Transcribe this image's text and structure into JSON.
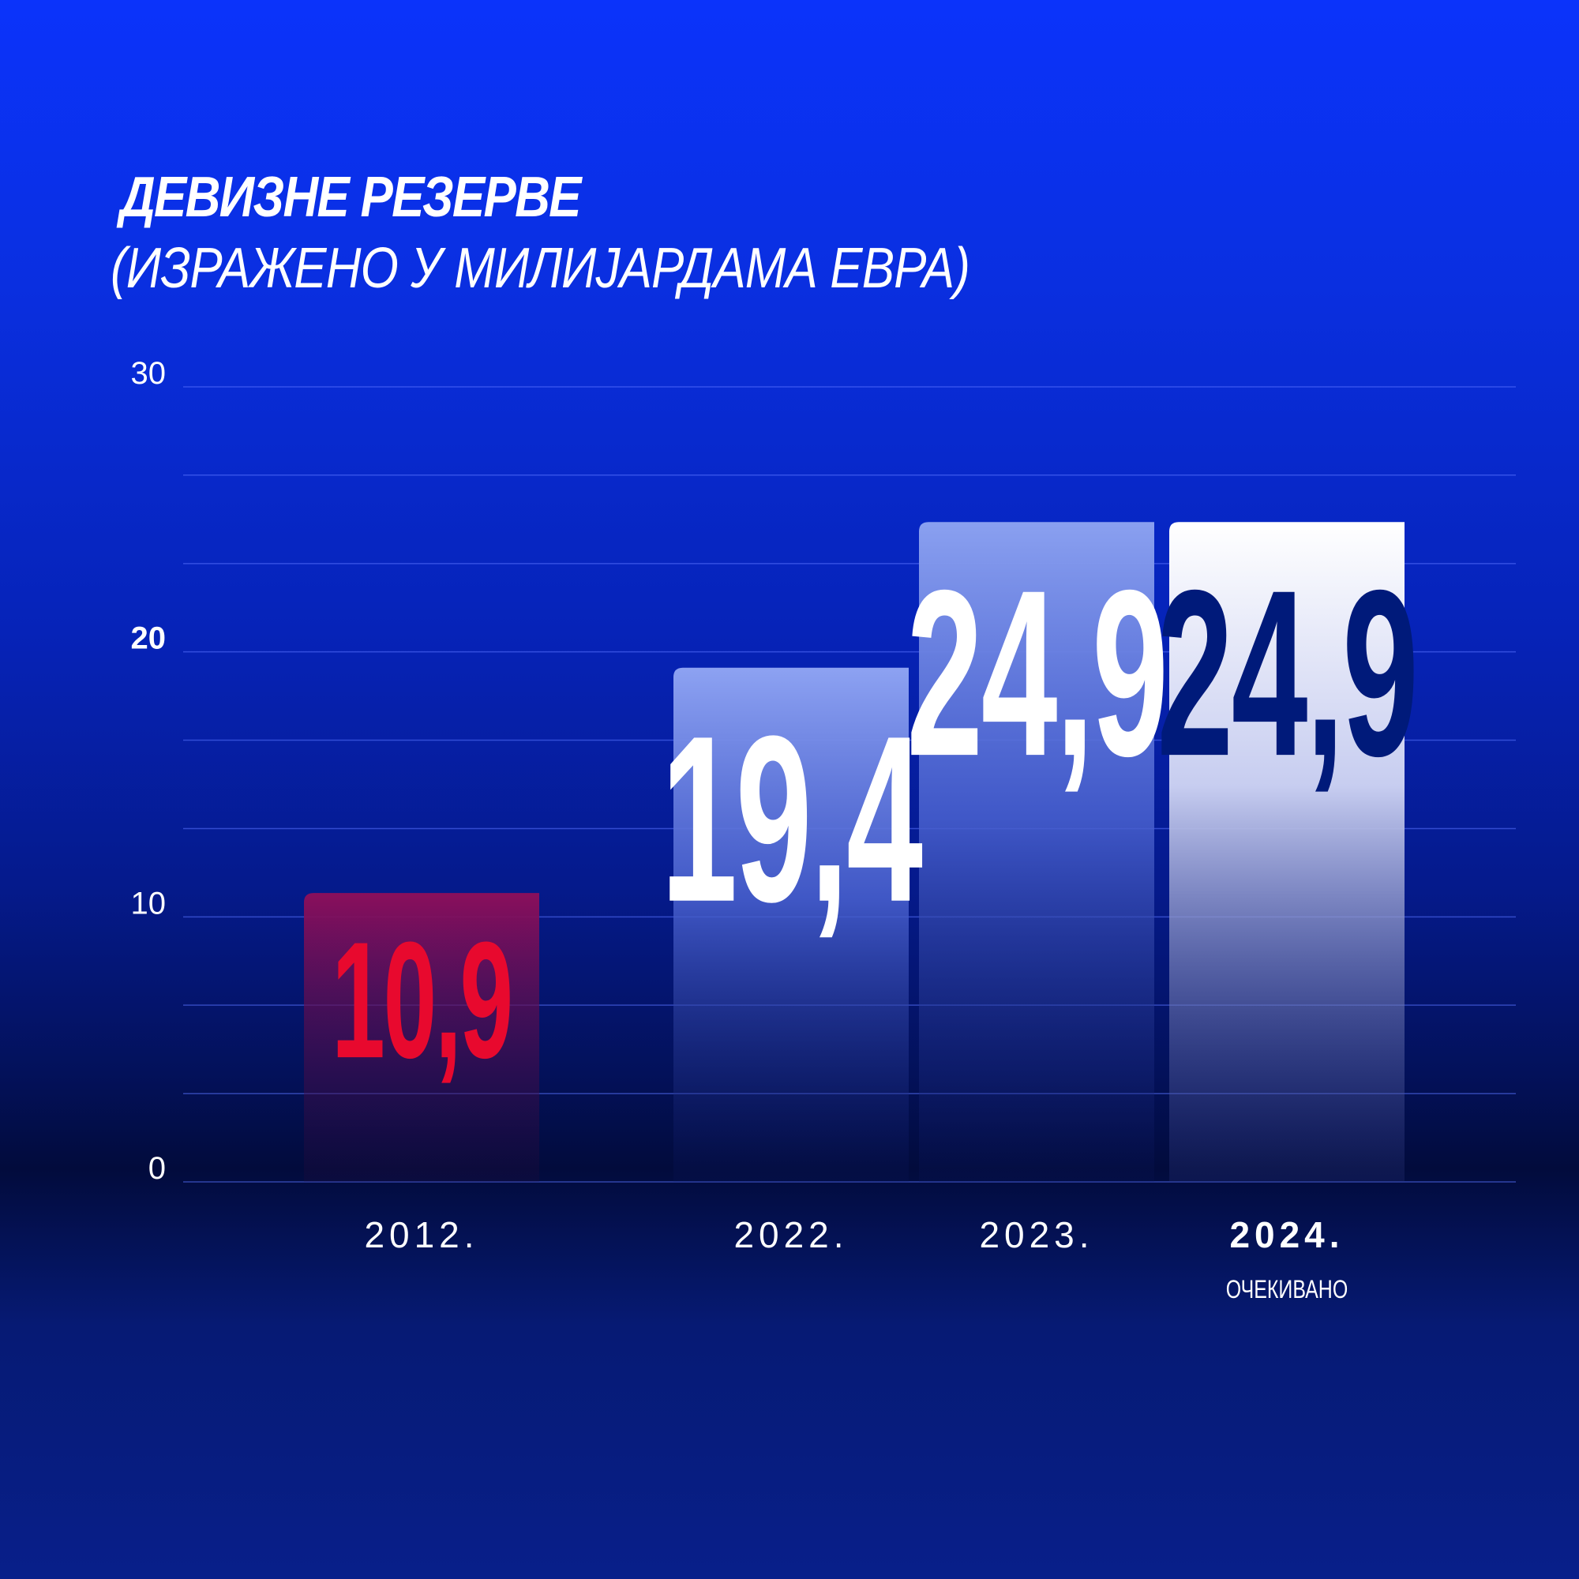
{
  "header": {
    "title": "ДЕВИЗНЕ РЕЗЕРВЕ",
    "subtitle": "(ИЗРАЖЕНО У МИЛИЈАРДАМА ЕВРА)"
  },
  "colors": {
    "grid": "#5a73ff",
    "text": "#ffffff",
    "bar_red_top": "#8a0f5c",
    "bar_red_label": "#e8092e",
    "bar_blue_top": "#8aa0f0",
    "bar_white_top": "#ffffff",
    "bar_white_label": "#001a7a"
  },
  "chart_data": {
    "type": "bar",
    "title": "ДЕВИЗНЕ РЕЗЕРВЕ",
    "subtitle": "(ИЗРАЖЕНО У МИЛИЈАРДАМА ЕВРА)",
    "categories": [
      "2012.",
      "2022.",
      "2023.",
      "2024."
    ],
    "category_notes": [
      "",
      "",
      "",
      "ОЧЕКИВАНО"
    ],
    "values": [
      10.9,
      19.4,
      24.9,
      24.9
    ],
    "value_labels": [
      "10,9",
      "19,4",
      "24,9",
      "24,9"
    ],
    "ylim": [
      0,
      30
    ],
    "yticks": [
      0,
      10,
      20,
      30
    ],
    "ytick_labels": [
      "0",
      "10",
      "20",
      "30"
    ],
    "gridlines": [
      0,
      3.33,
      6.67,
      10,
      13.33,
      16.67,
      20,
      23.33,
      26.67,
      30
    ],
    "grid": true,
    "legend": "none",
    "xlabel": "",
    "ylabel": ""
  }
}
